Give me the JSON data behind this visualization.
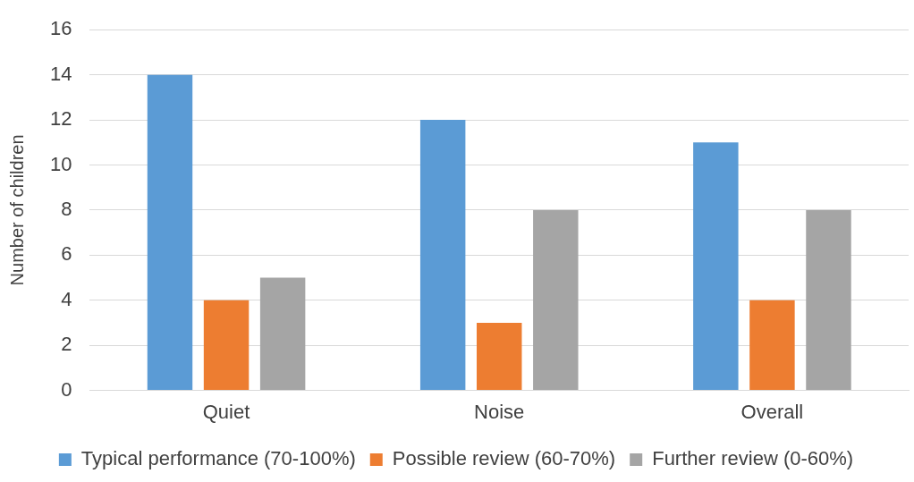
{
  "chart_data": {
    "type": "bar",
    "ylabel": "Number of children",
    "categories": [
      "Quiet",
      "Noise",
      "Overall"
    ],
    "series": [
      {
        "name": "Typical performance (70-100%)",
        "color": "#5b9bd5",
        "values": [
          14,
          12,
          11
        ]
      },
      {
        "name": "Possible review (60-70%)",
        "color": "#ed7d31",
        "values": [
          4,
          3,
          4
        ]
      },
      {
        "name": "Further review (0-60%)",
        "color": "#a5a5a5",
        "values": [
          5,
          8,
          8
        ]
      }
    ],
    "ylim": [
      0,
      16
    ],
    "yticks": [
      0,
      2,
      4,
      6,
      8,
      10,
      12,
      14,
      16
    ],
    "grid": "y",
    "legend": "bottom"
  }
}
